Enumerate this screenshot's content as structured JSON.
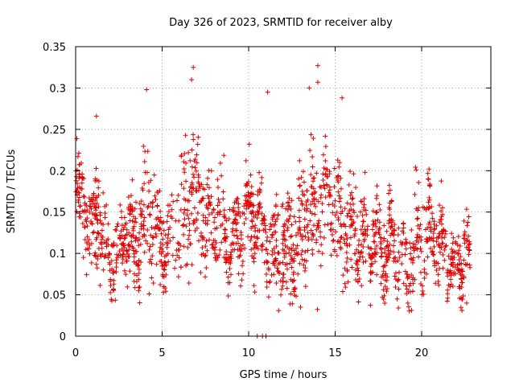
{
  "chart_data": {
    "type": "scatter",
    "title": "Day 326 of 2023, SRMTID for receiver alby",
    "xlabel": "GPS time / hours",
    "ylabel": "SRMTID / TECUs",
    "xlim": [
      0,
      24
    ],
    "ylim": [
      0,
      0.35
    ],
    "xticks": [
      0,
      5,
      10,
      15,
      20
    ],
    "yticks": [
      0,
      0.05,
      0.1,
      0.15,
      0.2,
      0.25,
      0.3,
      0.35
    ],
    "xtick_labels": [
      "0",
      "5",
      "10",
      "15",
      "20"
    ],
    "ytick_labels": [
      "0",
      "0.05",
      "0.1",
      "0.15",
      "0.2",
      "0.25",
      "0.3",
      "0.35"
    ],
    "grid": true,
    "marker": "+",
    "color": "#e00000",
    "series": [
      {
        "name": "SRMTID",
        "envelope": [
          {
            "x": 0.0,
            "mean": 0.17,
            "spread": 0.04
          },
          {
            "x": 0.5,
            "mean": 0.16,
            "spread": 0.05
          },
          {
            "x": 1.0,
            "mean": 0.13,
            "spread": 0.04
          },
          {
            "x": 1.3,
            "mean": 0.15,
            "spread": 0.06
          },
          {
            "x": 1.8,
            "mean": 0.09,
            "spread": 0.035
          },
          {
            "x": 2.5,
            "mean": 0.11,
            "spread": 0.04
          },
          {
            "x": 3.0,
            "mean": 0.12,
            "spread": 0.05
          },
          {
            "x": 3.5,
            "mean": 0.11,
            "spread": 0.045
          },
          {
            "x": 4.0,
            "mean": 0.15,
            "spread": 0.06
          },
          {
            "x": 4.5,
            "mean": 0.14,
            "spread": 0.06
          },
          {
            "x": 5.0,
            "mean": 0.11,
            "spread": 0.04
          },
          {
            "x": 5.5,
            "mean": 0.12,
            "spread": 0.045
          },
          {
            "x": 6.0,
            "mean": 0.13,
            "spread": 0.06
          },
          {
            "x": 6.8,
            "mean": 0.17,
            "spread": 0.07
          },
          {
            "x": 7.5,
            "mean": 0.14,
            "spread": 0.05
          },
          {
            "x": 8.0,
            "mean": 0.13,
            "spread": 0.05
          },
          {
            "x": 8.5,
            "mean": 0.14,
            "spread": 0.055
          },
          {
            "x": 9.0,
            "mean": 0.11,
            "spread": 0.035
          },
          {
            "x": 9.5,
            "mean": 0.12,
            "spread": 0.04
          },
          {
            "x": 10.0,
            "mean": 0.16,
            "spread": 0.045
          },
          {
            "x": 10.5,
            "mean": 0.14,
            "spread": 0.05
          },
          {
            "x": 11.2,
            "mean": 0.1,
            "spread": 0.045
          },
          {
            "x": 12.0,
            "mean": 0.1,
            "spread": 0.05
          },
          {
            "x": 12.8,
            "mean": 0.12,
            "spread": 0.06
          },
          {
            "x": 13.5,
            "mean": 0.14,
            "spread": 0.07
          },
          {
            "x": 14.3,
            "mean": 0.17,
            "spread": 0.06
          },
          {
            "x": 15.0,
            "mean": 0.15,
            "spread": 0.06
          },
          {
            "x": 16.0,
            "mean": 0.12,
            "spread": 0.05
          },
          {
            "x": 17.0,
            "mean": 0.11,
            "spread": 0.045
          },
          {
            "x": 18.0,
            "mean": 0.12,
            "spread": 0.05
          },
          {
            "x": 19.0,
            "mean": 0.09,
            "spread": 0.04
          },
          {
            "x": 20.0,
            "mean": 0.12,
            "spread": 0.05
          },
          {
            "x": 20.7,
            "mean": 0.13,
            "spread": 0.05
          },
          {
            "x": 21.5,
            "mean": 0.09,
            "spread": 0.035
          },
          {
            "x": 22.7,
            "mean": 0.09,
            "spread": 0.035
          }
        ],
        "x_range": [
          0.0,
          22.8
        ],
        "n_points": 1800,
        "notable_points": [
          {
            "x": 6.8,
            "y": 0.325
          },
          {
            "x": 14.0,
            "y": 0.327
          },
          {
            "x": 13.5,
            "y": 0.3
          },
          {
            "x": 4.1,
            "y": 0.298
          },
          {
            "x": 11.1,
            "y": 0.295
          },
          {
            "x": 15.4,
            "y": 0.288
          },
          {
            "x": 14.0,
            "y": 0.307
          },
          {
            "x": 6.7,
            "y": 0.31
          },
          {
            "x": 1.2,
            "y": 0.266
          },
          {
            "x": 10.5,
            "y": 0.0
          },
          {
            "x": 10.8,
            "y": 0.0
          },
          {
            "x": 11.0,
            "y": 0.0
          },
          {
            "x": 13.0,
            "y": 0.035
          },
          {
            "x": 19.2,
            "y": 0.04
          },
          {
            "x": 22.6,
            "y": 0.04
          }
        ]
      }
    ]
  }
}
